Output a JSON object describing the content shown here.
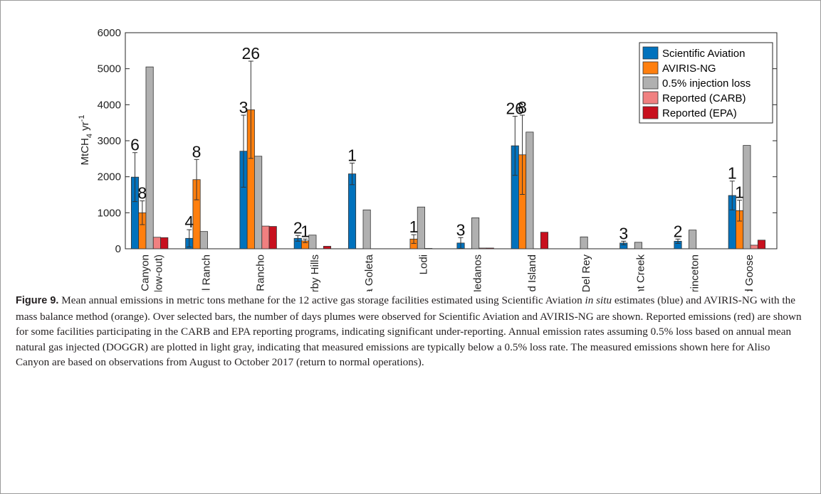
{
  "caption": {
    "label": "Figure 9.",
    "part1": " Mean annual emissions in metric tons methane for the 12 active gas storage facilities estimated using Scientific Aviation ",
    "italic": "in situ",
    "part2": " estimates (blue) and AVIRIS-NG with the mass balance method (orange). Over selected bars, the number of days plumes were observed for Scientific Aviation and AVIRIS-NG are shown. Reported emissions (red) are shown for some facilities participating in the CARB and EPA reporting programs, indicating significant under-reporting. Annual emission rates assuming 0.5% loss based on annual mean natural gas injected (DOGGR) are plotted in light gray, indicating that measured emissions are typically below a 0.5% loss rate. The measured emissions shown here for Aliso Canyon are based on observations from August to October 2017 (return to normal operations)."
  },
  "colors": {
    "scientific_aviation": "#0072bd",
    "aviris_ng": "#ff7f0e",
    "injection_loss": "#b0b0b0",
    "reported_carb": "#f08080",
    "reported_epa": "#c8101e"
  },
  "chart_data": {
    "type": "bar",
    "ylabel_main": "MtCH",
    "ylabel_sub": "4",
    "ylabel_unit": " yr",
    "ylabel_sup": "-1",
    "ylim": [
      0,
      6000
    ],
    "yticks": [
      "0",
      "1000",
      "2000",
      "3000",
      "4000",
      "5000",
      "6000"
    ],
    "categories": [
      [
        "Aliso Canyon",
        "(post blow-out)"
      ],
      [
        "Gill Ranch"
      ],
      [
        "Honor Rancho"
      ],
      [
        "Kirby Hills"
      ],
      [
        "La Goleta"
      ],
      [
        "Lodi"
      ],
      [
        "Los Medanos"
      ],
      [
        "McDonald Island"
      ],
      [
        "Playa Del Rey"
      ],
      [
        "Pleasant Creek"
      ],
      [
        "Princeton"
      ],
      [
        "Wild Goose"
      ]
    ],
    "legend_position": "top-right",
    "series": [
      {
        "name": "Scientific Aviation",
        "color_key": "scientific_aviation",
        "values": [
          1990,
          290,
          2710,
          290,
          2080,
          0,
          160,
          2860,
          0,
          160,
          210,
          1480
        ],
        "errors": [
          680,
          240,
          1000,
          80,
          300,
          0,
          150,
          820,
          0,
          50,
          60,
          400
        ],
        "counts": [
          "6",
          "4",
          "3",
          "2",
          "1",
          "",
          "3",
          "26",
          "",
          "3",
          "2",
          "1"
        ]
      },
      {
        "name": "AVIRIS-NG",
        "color_key": "aviris_ng",
        "values": [
          1000,
          1920,
          3860,
          220,
          0,
          270,
          0,
          2610,
          0,
          0,
          0,
          1060
        ],
        "errors": [
          330,
          560,
          1350,
          50,
          0,
          120,
          0,
          1100,
          0,
          0,
          0,
          290
        ],
        "counts": [
          "8",
          "8",
          "26",
          "1",
          "",
          "1",
          "",
          "8",
          "",
          "",
          "",
          "1"
        ]
      },
      {
        "name": "0.5% injection loss",
        "color_key": "injection_loss",
        "values": [
          5050,
          480,
          2570,
          380,
          1080,
          1160,
          860,
          3240,
          330,
          180,
          520,
          2870
        ]
      },
      {
        "name": "Reported (CARB)",
        "color_key": "reported_carb",
        "values": [
          320,
          0,
          630,
          0,
          0,
          10,
          20,
          0,
          0,
          0,
          0,
          100
        ]
      },
      {
        "name": "Reported (EPA)",
        "color_key": "reported_epa",
        "values": [
          310,
          0,
          620,
          70,
          0,
          0,
          20,
          460,
          0,
          0,
          0,
          240
        ]
      }
    ]
  }
}
